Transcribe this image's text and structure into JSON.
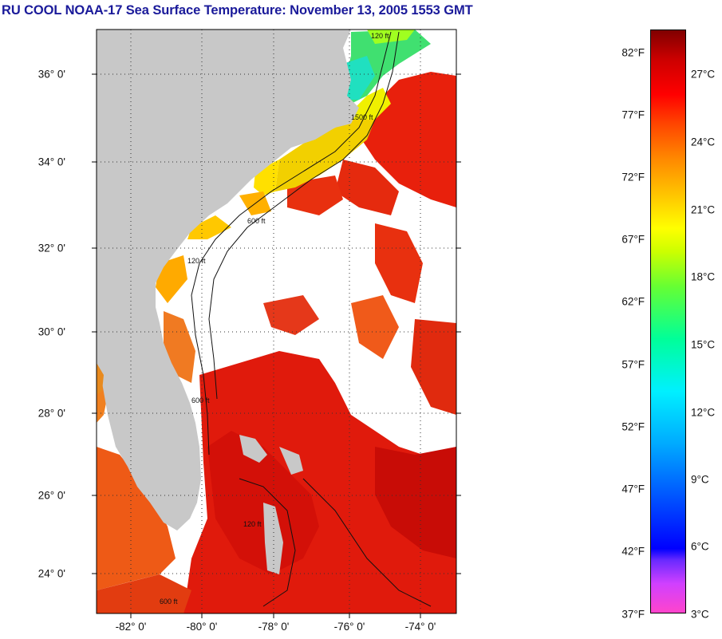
{
  "title": "RU COOL  NOAA-17  Sea Surface Temperature:  November 13, 2005 1553 GMT",
  "map": {
    "lat_labels": [
      "36° 0'",
      "34° 0'",
      "32° 0'",
      "30° 0'",
      "28° 0'",
      "26° 0'",
      "24° 0'"
    ],
    "lon_labels": [
      "-82° 0'",
      "-80° 0'",
      "-78° 0'",
      "-76° 0'",
      "-74° 0'"
    ],
    "contour_labels": [
      "120 ft",
      "1500 ft",
      "600 ft",
      "120 ft",
      "600 ft",
      "120 ft",
      "600 ft"
    ],
    "colors": {
      "land": "#c8c8c8",
      "cloud": "#ffffff",
      "warm_water": "#e8140a",
      "cool_water": "#ffd400"
    }
  },
  "colorbar": {
    "fahrenheit_labels": [
      "82°F",
      "77°F",
      "72°F",
      "67°F",
      "62°F",
      "57°F",
      "52°F",
      "47°F",
      "42°F",
      "37°F"
    ],
    "celsius_labels": [
      "27°C",
      "24°C",
      "21°C",
      "18°C",
      "15°C",
      "12°C",
      "9°C",
      "6°C",
      "3°C"
    ]
  }
}
